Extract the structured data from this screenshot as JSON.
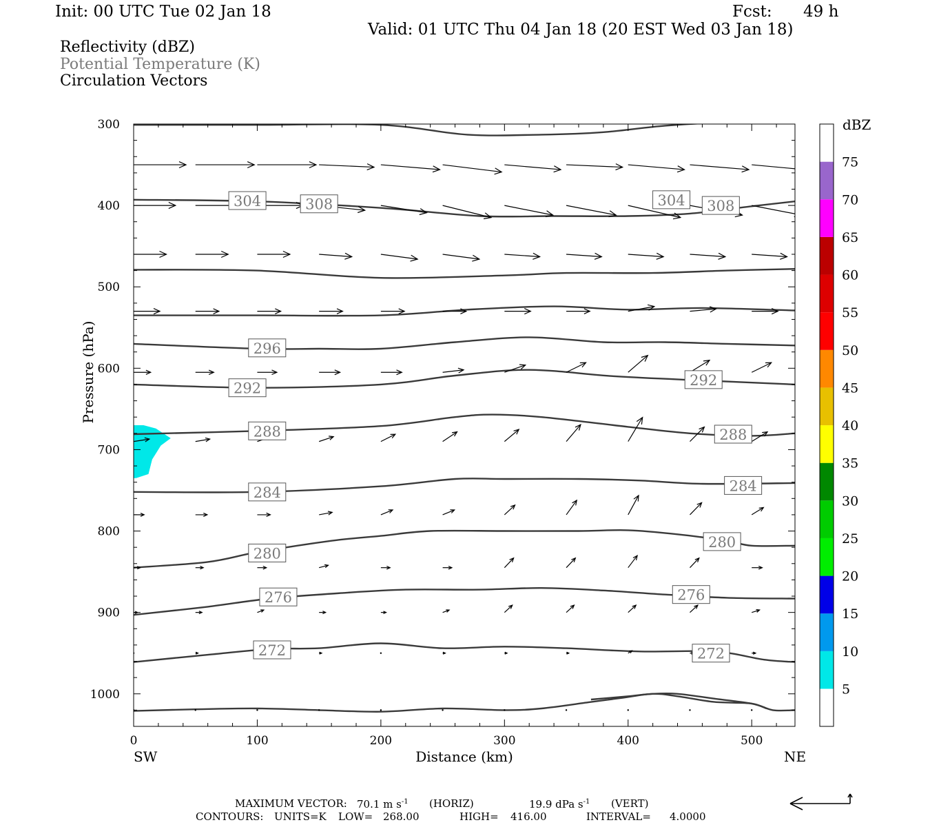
{
  "header": {
    "init": "Init: 00 UTC Tue 02 Jan 18",
    "fcst_label": "Fcst:",
    "fcst_value": "49 h",
    "valid": "Valid: 01 UTC Thu 04 Jan 18 (20 EST Wed 03 Jan 18)"
  },
  "fields": {
    "reflectivity": "Reflectivity (dBZ)",
    "theta": "Potential Temperature (K)",
    "vectors": "Circulation Vectors"
  },
  "colors": {
    "contour": "#3a3a3a",
    "echo": "#00e8e8",
    "theta_label": "#7a7a7a"
  },
  "chart_data": {
    "type": "cross-section",
    "xlabel": "Distance (km)",
    "ylabel": "Pressure (hPa)",
    "xlim": [
      0,
      535
    ],
    "ylim": [
      300,
      1040
    ],
    "y_scale": "linear, inverted (pressure)",
    "x_ticks": [
      0,
      100,
      200,
      300,
      400,
      500
    ],
    "y_ticks": [
      300,
      400,
      500,
      600,
      700,
      800,
      900,
      1000
    ],
    "x_tick_labels": [
      "0",
      "100",
      "200",
      "300",
      "400",
      "500"
    ],
    "y_tick_labels": [
      "300",
      "400",
      "500",
      "600",
      "700",
      "800",
      "900",
      "1000"
    ],
    "left_end_label": "SW",
    "right_end_label": "NE",
    "theta_contours": [
      {
        "value": 312,
        "points": [
          [
            0,
            301
          ],
          [
            100,
            301
          ],
          [
            200,
            301
          ],
          [
            270,
            313
          ],
          [
            330,
            313
          ],
          [
            380,
            310
          ],
          [
            430,
            302
          ],
          [
            480,
            298
          ],
          [
            535,
            298
          ]
        ]
      },
      {
        "value": 308,
        "label": "308",
        "label_at": [
          [
            150,
            398
          ],
          [
            475,
            400
          ]
        ],
        "points": [
          [
            0,
            393
          ],
          [
            100,
            395
          ],
          [
            200,
            403
          ],
          [
            280,
            413
          ],
          [
            340,
            413
          ],
          [
            400,
            413
          ],
          [
            450,
            410
          ],
          [
            500,
            401
          ],
          [
            535,
            395
          ]
        ]
      },
      {
        "value": 304,
        "label": "304",
        "label_at": [
          [
            92,
            394
          ],
          [
            435,
            393
          ]
        ],
        "points": [
          [
            0,
            479
          ],
          [
            100,
            480
          ],
          [
            200,
            489
          ],
          [
            300,
            486
          ],
          [
            350,
            483
          ],
          [
            420,
            483
          ],
          [
            480,
            480
          ],
          [
            535,
            478
          ]
        ]
      },
      {
        "value": 300,
        "points": [
          [
            0,
            535
          ],
          [
            100,
            535
          ],
          [
            200,
            535
          ],
          [
            270,
            528
          ],
          [
            340,
            524
          ],
          [
            400,
            528
          ],
          [
            460,
            526
          ],
          [
            535,
            529
          ]
        ]
      },
      {
        "value": 296,
        "label": "296",
        "label_at": [
          [
            108,
            575
          ]
        ],
        "points": [
          [
            0,
            570
          ],
          [
            100,
            576
          ],
          [
            150,
            576
          ],
          [
            200,
            576
          ],
          [
            260,
            568
          ],
          [
            320,
            562
          ],
          [
            380,
            568
          ],
          [
            430,
            568
          ],
          [
            480,
            570
          ],
          [
            535,
            572
          ]
        ]
      },
      {
        "value": 292,
        "label": "292",
        "label_at": [
          [
            92,
            624
          ],
          [
            461,
            614
          ]
        ],
        "points": [
          [
            0,
            620
          ],
          [
            100,
            624
          ],
          [
            200,
            620
          ],
          [
            260,
            609
          ],
          [
            320,
            602
          ],
          [
            390,
            610
          ],
          [
            460,
            615
          ],
          [
            535,
            620
          ]
        ]
      },
      {
        "value": 288,
        "label": "288",
        "label_at": [
          [
            108,
            677
          ],
          [
            485,
            681
          ]
        ],
        "points": [
          [
            0,
            681
          ],
          [
            100,
            677
          ],
          [
            200,
            671
          ],
          [
            260,
            660
          ],
          [
            290,
            657
          ],
          [
            330,
            660
          ],
          [
            400,
            672
          ],
          [
            450,
            680
          ],
          [
            500,
            683
          ],
          [
            535,
            680
          ]
        ]
      },
      {
        "value": 284,
        "label": "284",
        "label_at": [
          [
            108,
            752
          ],
          [
            493,
            744
          ]
        ],
        "points": [
          [
            0,
            752
          ],
          [
            100,
            752
          ],
          [
            200,
            745
          ],
          [
            260,
            736
          ],
          [
            300,
            736
          ],
          [
            360,
            736
          ],
          [
            410,
            738
          ],
          [
            460,
            742
          ],
          [
            535,
            741
          ]
        ]
      },
      {
        "value": 280,
        "label": "280",
        "label_at": [
          [
            108,
            827
          ],
          [
            476,
            813
          ]
        ],
        "points": [
          [
            0,
            845
          ],
          [
            60,
            838
          ],
          [
            100,
            826
          ],
          [
            160,
            812
          ],
          [
            200,
            806
          ],
          [
            240,
            800
          ],
          [
            300,
            800
          ],
          [
            360,
            800
          ],
          [
            400,
            799
          ],
          [
            440,
            804
          ],
          [
            480,
            812
          ],
          [
            500,
            818
          ],
          [
            535,
            818
          ]
        ]
      },
      {
        "value": 276,
        "label": "276",
        "label_at": [
          [
            117,
            881
          ],
          [
            451,
            878
          ]
        ],
        "points": [
          [
            0,
            903
          ],
          [
            60,
            893
          ],
          [
            110,
            883
          ],
          [
            170,
            876
          ],
          [
            220,
            872
          ],
          [
            280,
            872
          ],
          [
            330,
            870
          ],
          [
            380,
            873
          ],
          [
            430,
            878
          ],
          [
            480,
            882
          ],
          [
            535,
            883
          ]
        ]
      },
      {
        "value": 272,
        "label": "272",
        "label_at": [
          [
            112,
            946
          ],
          [
            467,
            950
          ]
        ],
        "points": [
          [
            0,
            961
          ],
          [
            60,
            952
          ],
          [
            110,
            945
          ],
          [
            150,
            944
          ],
          [
            200,
            938
          ],
          [
            250,
            944
          ],
          [
            300,
            942
          ],
          [
            350,
            944
          ],
          [
            410,
            948
          ],
          [
            470,
            948
          ],
          [
            510,
            958
          ],
          [
            535,
            961
          ]
        ]
      },
      {
        "value": 268,
        "points": [
          [
            0,
            1021
          ],
          [
            50,
            1019
          ],
          [
            100,
            1018
          ],
          [
            150,
            1020
          ],
          [
            200,
            1022
          ],
          [
            250,
            1018
          ],
          [
            300,
            1020
          ],
          [
            330,
            1018
          ],
          [
            370,
            1010
          ],
          [
            395,
            1005
          ],
          [
            420,
            1000
          ],
          [
            440,
            1003
          ],
          [
            470,
            1010
          ],
          [
            500,
            1012
          ],
          [
            517,
            1020
          ],
          [
            535,
            1020
          ]
        ]
      },
      {
        "value": 268,
        "points": [
          [
            370,
            1007
          ],
          [
            400,
            1003
          ],
          [
            420,
            1000
          ],
          [
            440,
            1000
          ],
          [
            470,
            1006
          ],
          [
            500,
            1012
          ],
          [
            512,
            1018
          ]
        ]
      }
    ],
    "reflectivity_echo": {
      "dbz": 5,
      "points": [
        [
          0,
          670
        ],
        [
          8,
          670
        ],
        [
          18,
          674
        ],
        [
          30,
          686
        ],
        [
          22,
          695
        ],
        [
          15,
          712
        ],
        [
          12,
          730
        ],
        [
          2,
          735
        ],
        [
          0,
          735
        ]
      ]
    },
    "vectors": {
      "note": "horizontal component (m/s) and vertical motion (dPa/s) sampled at grid points",
      "x": [
        0,
        50,
        100,
        150,
        200,
        250,
        300,
        350,
        400,
        450,
        500
      ],
      "rows": [
        {
          "p": 350,
          "u": [
            40,
            45,
            45,
            42,
            45,
            45,
            43,
            43,
            43,
            45,
            40
          ],
          "w": [
            0,
            0,
            0,
            1,
            2,
            3,
            2,
            1,
            2,
            2,
            2
          ]
        },
        {
          "p": 400,
          "u": [
            32,
            35,
            35,
            35,
            35,
            37,
            37,
            38,
            40,
            40,
            38
          ],
          "w": [
            0,
            0,
            0,
            2,
            3,
            5,
            4,
            4,
            5,
            4,
            4
          ]
        },
        {
          "p": 460,
          "u": [
            25,
            25,
            25,
            25,
            28,
            28,
            27,
            27,
            27,
            27,
            27
          ],
          "w": [
            0,
            0,
            0,
            1,
            2,
            2,
            1,
            1,
            1,
            1,
            1
          ]
        },
        {
          "p": 530,
          "u": [
            20,
            18,
            18,
            18,
            18,
            18,
            20,
            18,
            20,
            20,
            20
          ],
          "w": [
            0,
            0,
            0,
            0,
            0,
            0,
            0,
            0,
            -2,
            -1,
            0
          ]
        },
        {
          "p": 605,
          "u": [
            13,
            14,
            15,
            16,
            16,
            16,
            16,
            15,
            15,
            15,
            15
          ],
          "w": [
            0,
            0,
            0,
            0,
            0,
            -1,
            -3,
            -4,
            -7,
            -5,
            -4
          ]
        },
        {
          "p": 690,
          "u": [
            12,
            11,
            11,
            11,
            11,
            11,
            11,
            11,
            11,
            11,
            12
          ],
          "w": [
            -1,
            -1,
            -2,
            -2,
            -3,
            -4,
            -5,
            -7,
            -10,
            -6,
            -4
          ]
        },
        {
          "p": 780,
          "u": [
            8,
            9,
            10,
            10,
            9,
            9,
            8,
            8,
            8,
            9,
            9
          ],
          "w": [
            0,
            0,
            0,
            -1,
            -2,
            -2,
            -4,
            -6,
            -8,
            -5,
            -3
          ]
        },
        {
          "p": 845,
          "u": [
            5,
            6,
            7,
            7,
            7,
            7,
            7,
            7,
            7,
            7,
            8
          ],
          "w": [
            0,
            0,
            0,
            -1,
            0,
            0,
            -4,
            -4,
            -5,
            -4,
            0
          ]
        },
        {
          "p": 900,
          "u": [
            3,
            5,
            5,
            5,
            4,
            5,
            6,
            6,
            6,
            6,
            6
          ],
          "w": [
            0,
            0,
            -1,
            0,
            0,
            -1,
            -3,
            -3,
            -3,
            -3,
            -1
          ]
        },
        {
          "p": 950,
          "u": [
            1,
            2,
            2,
            2,
            1,
            2,
            2,
            2,
            3,
            3,
            3
          ],
          "w": [
            0,
            0,
            0,
            0,
            0,
            0,
            0,
            0,
            -1,
            0,
            0
          ]
        },
        {
          "p": 1020,
          "u": [
            0,
            1,
            1,
            1,
            1,
            1,
            1,
            1,
            1,
            1,
            1
          ],
          "w": [
            0,
            0,
            0,
            0,
            0,
            0,
            0,
            0,
            0,
            0,
            0
          ]
        }
      ]
    },
    "colorbar": {
      "title": "dBZ",
      "levels": [
        5,
        10,
        15,
        20,
        25,
        30,
        35,
        40,
        45,
        50,
        55,
        60,
        65,
        70,
        75
      ],
      "labels": [
        "5",
        "10",
        "15",
        "20",
        "25",
        "30",
        "35",
        "40",
        "45",
        "50",
        "55",
        "60",
        "65",
        "70",
        "75"
      ],
      "colors": [
        "#00e8e8",
        "#0099ee",
        "#0000e8",
        "#00ee00",
        "#00cc00",
        "#008800",
        "#ffff00",
        "#e8c000",
        "#ff8800",
        "#ff0000",
        "#dd0000",
        "#bb0000",
        "#ff00ff",
        "#9966cc",
        "#ffffff"
      ],
      "bottom_color": "#ffffff"
    }
  },
  "footer": {
    "max_vector_label": "MAXIMUM VECTOR:",
    "max_vector_horiz_value": "70.1 m s",
    "max_vector_horiz_exp": "-1",
    "max_vector_horiz_tag": "(HORIZ)",
    "max_vector_vert_value": "19.9 dPa s",
    "max_vector_vert_exp": "-1",
    "max_vector_vert_tag": "(VERT)",
    "contours_label": "CONTOURS:",
    "contours_units": "UNITS=K",
    "contours_low_label": "LOW=",
    "contours_low": "268.00",
    "contours_high_label": "HIGH=",
    "contours_high": "416.00",
    "contours_interval_label": "INTERVAL=",
    "contours_interval": "4.0000"
  }
}
